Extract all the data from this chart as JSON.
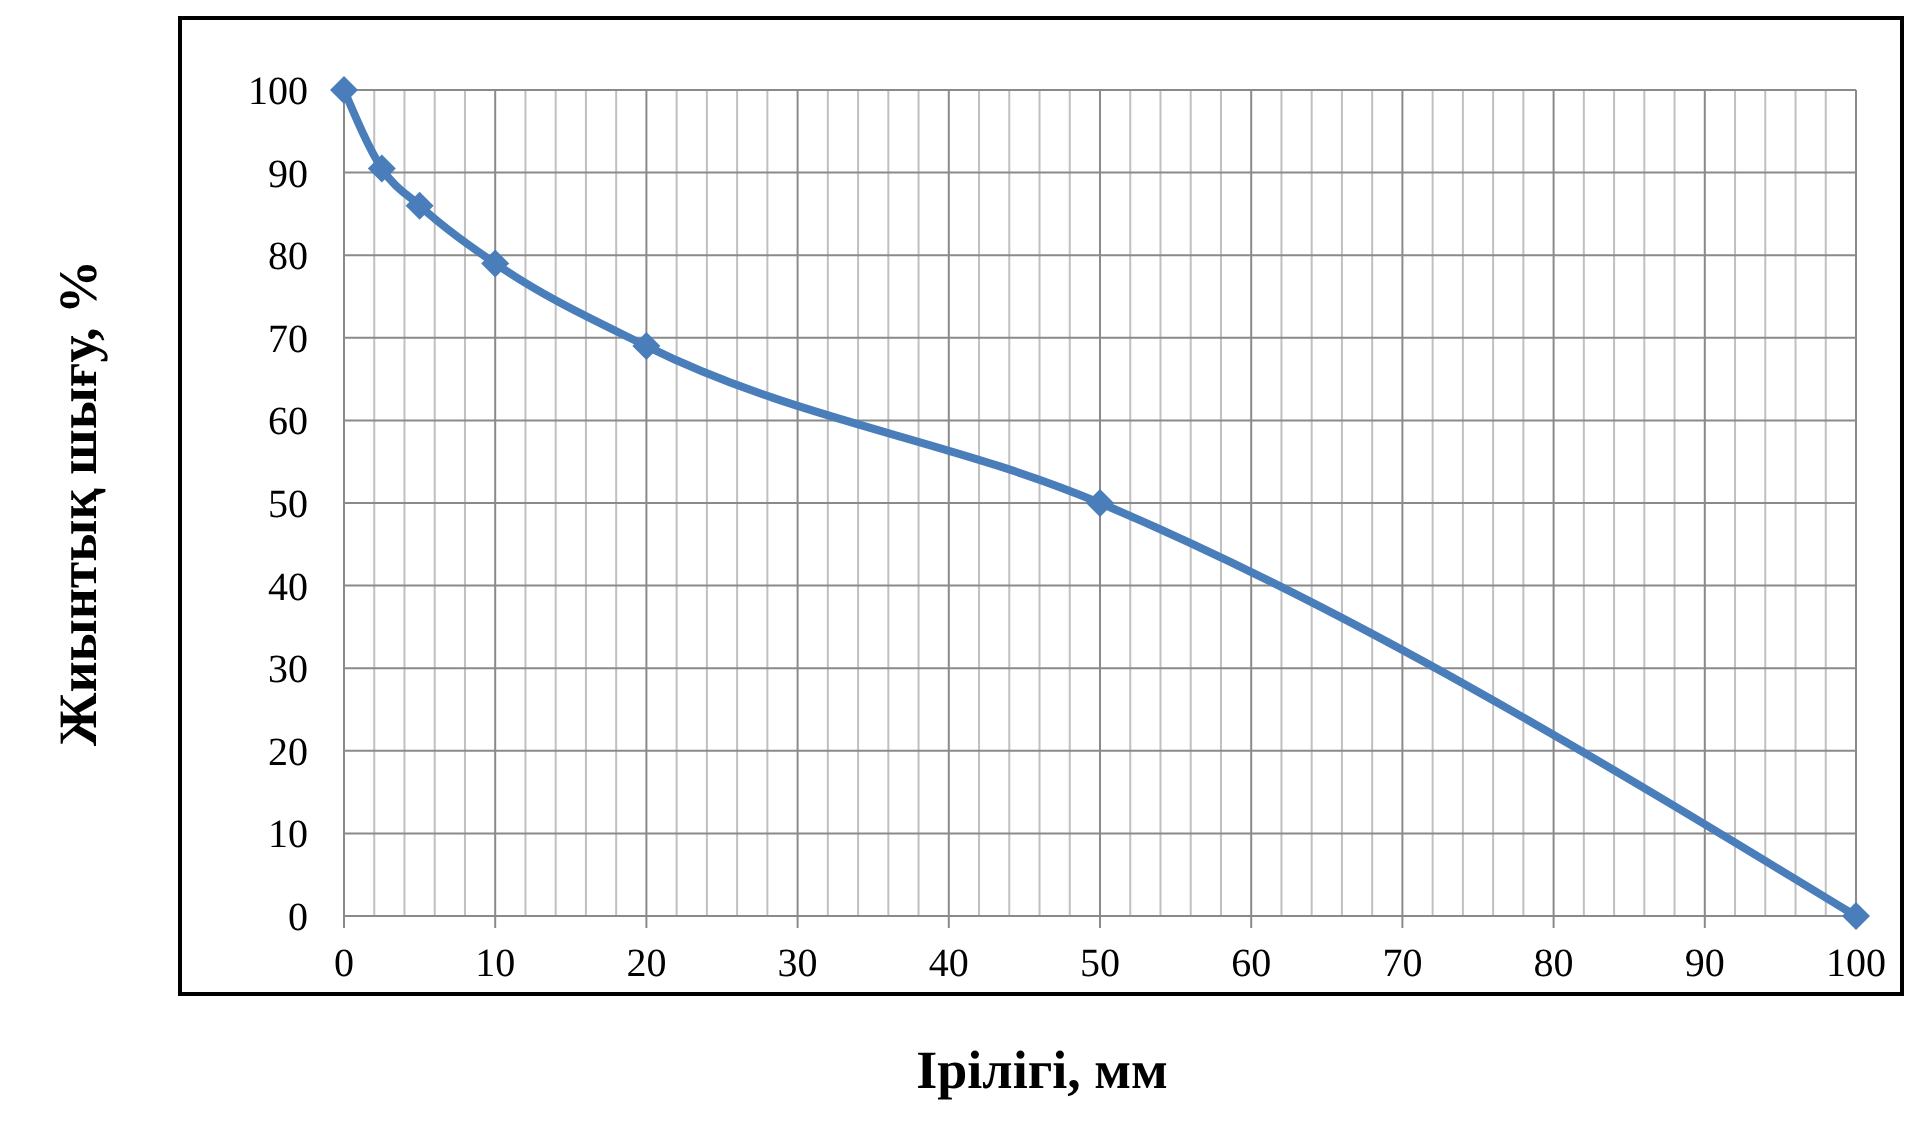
{
  "chart_data": {
    "type": "line",
    "xlabel": "Ірілігі, мм",
    "ylabel": "Жиынтық шығу, %",
    "x": [
      0,
      2.5,
      5,
      10,
      20,
      50,
      100
    ],
    "series": [
      {
        "color": "#4a7ebb",
        "values": [
          100,
          90.5,
          86,
          79,
          69,
          50,
          0
        ]
      }
    ],
    "xlim": [
      0,
      100
    ],
    "ylim": [
      0,
      100
    ],
    "xticks": [
      0,
      {
        "value": 2,
        "label": null
      },
      {
        "value": 4,
        "label": null
      },
      {
        "value": 6,
        "label": null
      },
      {
        "value": 8,
        "label": null
      },
      10,
      {
        "value": 12,
        "label": null
      },
      {
        "value": 14,
        "label": null
      },
      {
        "value": 16,
        "label": null
      },
      {
        "value": 18,
        "label": null
      },
      20,
      {
        "value": 22,
        "label": null
      },
      {
        "value": 24,
        "label": null
      },
      {
        "value": 26,
        "label": null
      },
      {
        "value": 28,
        "label": null
      },
      30,
      {
        "value": 32,
        "label": null
      },
      {
        "value": 34,
        "label": null
      },
      {
        "value": 36,
        "label": null
      },
      {
        "value": 38,
        "label": null
      },
      40,
      {
        "value": 42,
        "label": null
      },
      {
        "value": 44,
        "label": null
      },
      {
        "value": 46,
        "label": null
      },
      {
        "value": 48,
        "label": null
      },
      50,
      {
        "value": 52,
        "label": null
      },
      {
        "value": 54,
        "label": null
      },
      {
        "value": 56,
        "label": null
      },
      {
        "value": 58,
        "label": null
      },
      60,
      {
        "value": 62,
        "label": null
      },
      {
        "value": 64,
        "label": null
      },
      {
        "value": 66,
        "label": null
      },
      {
        "value": 68,
        "label": null
      },
      70,
      {
        "value": 72,
        "label": null
      },
      {
        "value": 74,
        "label": null
      },
      {
        "value": 76,
        "label": null
      },
      {
        "value": 78,
        "label": null
      },
      80,
      {
        "value": 82,
        "label": null
      },
      {
        "value": 84,
        "label": null
      },
      {
        "value": 86,
        "label": null
      },
      {
        "value": 88,
        "label": null
      },
      90,
      {
        "value": 92,
        "label": null
      },
      {
        "value": 94,
        "label": null
      },
      {
        "value": 96,
        "label": null
      },
      {
        "value": 98,
        "label": null
      },
      100
    ],
    "yticks": [
      0,
      10,
      20,
      30,
      40,
      50,
      60,
      70,
      80,
      90,
      100
    ],
    "grid": true,
    "marker": "diamond",
    "line_style": "solid"
  }
}
